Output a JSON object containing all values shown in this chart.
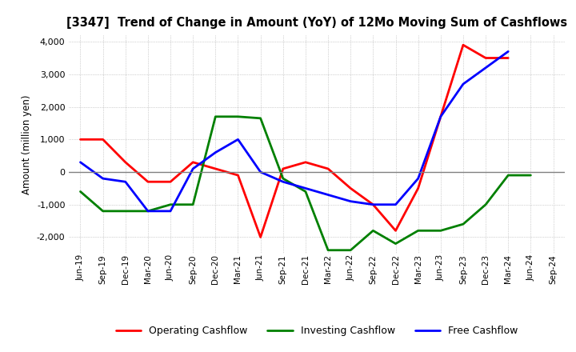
{
  "title": "[3347]  Trend of Change in Amount (YoY) of 12Mo Moving Sum of Cashflows",
  "ylabel": "Amount (million yen)",
  "ylim": [
    -2500,
    4200
  ],
  "yticks": [
    -2000,
    -1000,
    0,
    1000,
    2000,
    3000,
    4000
  ],
  "x_labels": [
    "Jun-19",
    "Sep-19",
    "Dec-19",
    "Mar-20",
    "Jun-20",
    "Sep-20",
    "Dec-20",
    "Mar-21",
    "Jun-21",
    "Sep-21",
    "Dec-21",
    "Mar-22",
    "Jun-22",
    "Sep-22",
    "Dec-22",
    "Mar-23",
    "Jun-23",
    "Sep-23",
    "Dec-23",
    "Mar-24",
    "Jun-24",
    "Sep-24"
  ],
  "operating": [
    1000,
    1000,
    300,
    -300,
    -300,
    300,
    100,
    -100,
    -2000,
    100,
    300,
    100,
    -500,
    -1000,
    -1800,
    -500,
    1700,
    3900,
    3500,
    3500,
    null,
    null
  ],
  "investing": [
    -600,
    -1200,
    -1200,
    -1200,
    -1000,
    -1000,
    1700,
    1700,
    1650,
    -200,
    -600,
    -2400,
    -2400,
    -1800,
    -2200,
    -1800,
    -1800,
    -1600,
    -1000,
    -100,
    -100,
    null
  ],
  "free": [
    300,
    -200,
    -300,
    -1200,
    -1200,
    100,
    600,
    1000,
    0,
    -300,
    -500,
    -700,
    -900,
    -1000,
    -1000,
    -200,
    1700,
    2700,
    3200,
    3700,
    null,
    null
  ],
  "colors": {
    "operating": "#ff0000",
    "investing": "#008000",
    "free": "#0000ff"
  },
  "background_color": "#ffffff",
  "plot_bg_color": "#ffffff",
  "grid_color": "#aaaaaa",
  "zero_line_color": "#808080"
}
